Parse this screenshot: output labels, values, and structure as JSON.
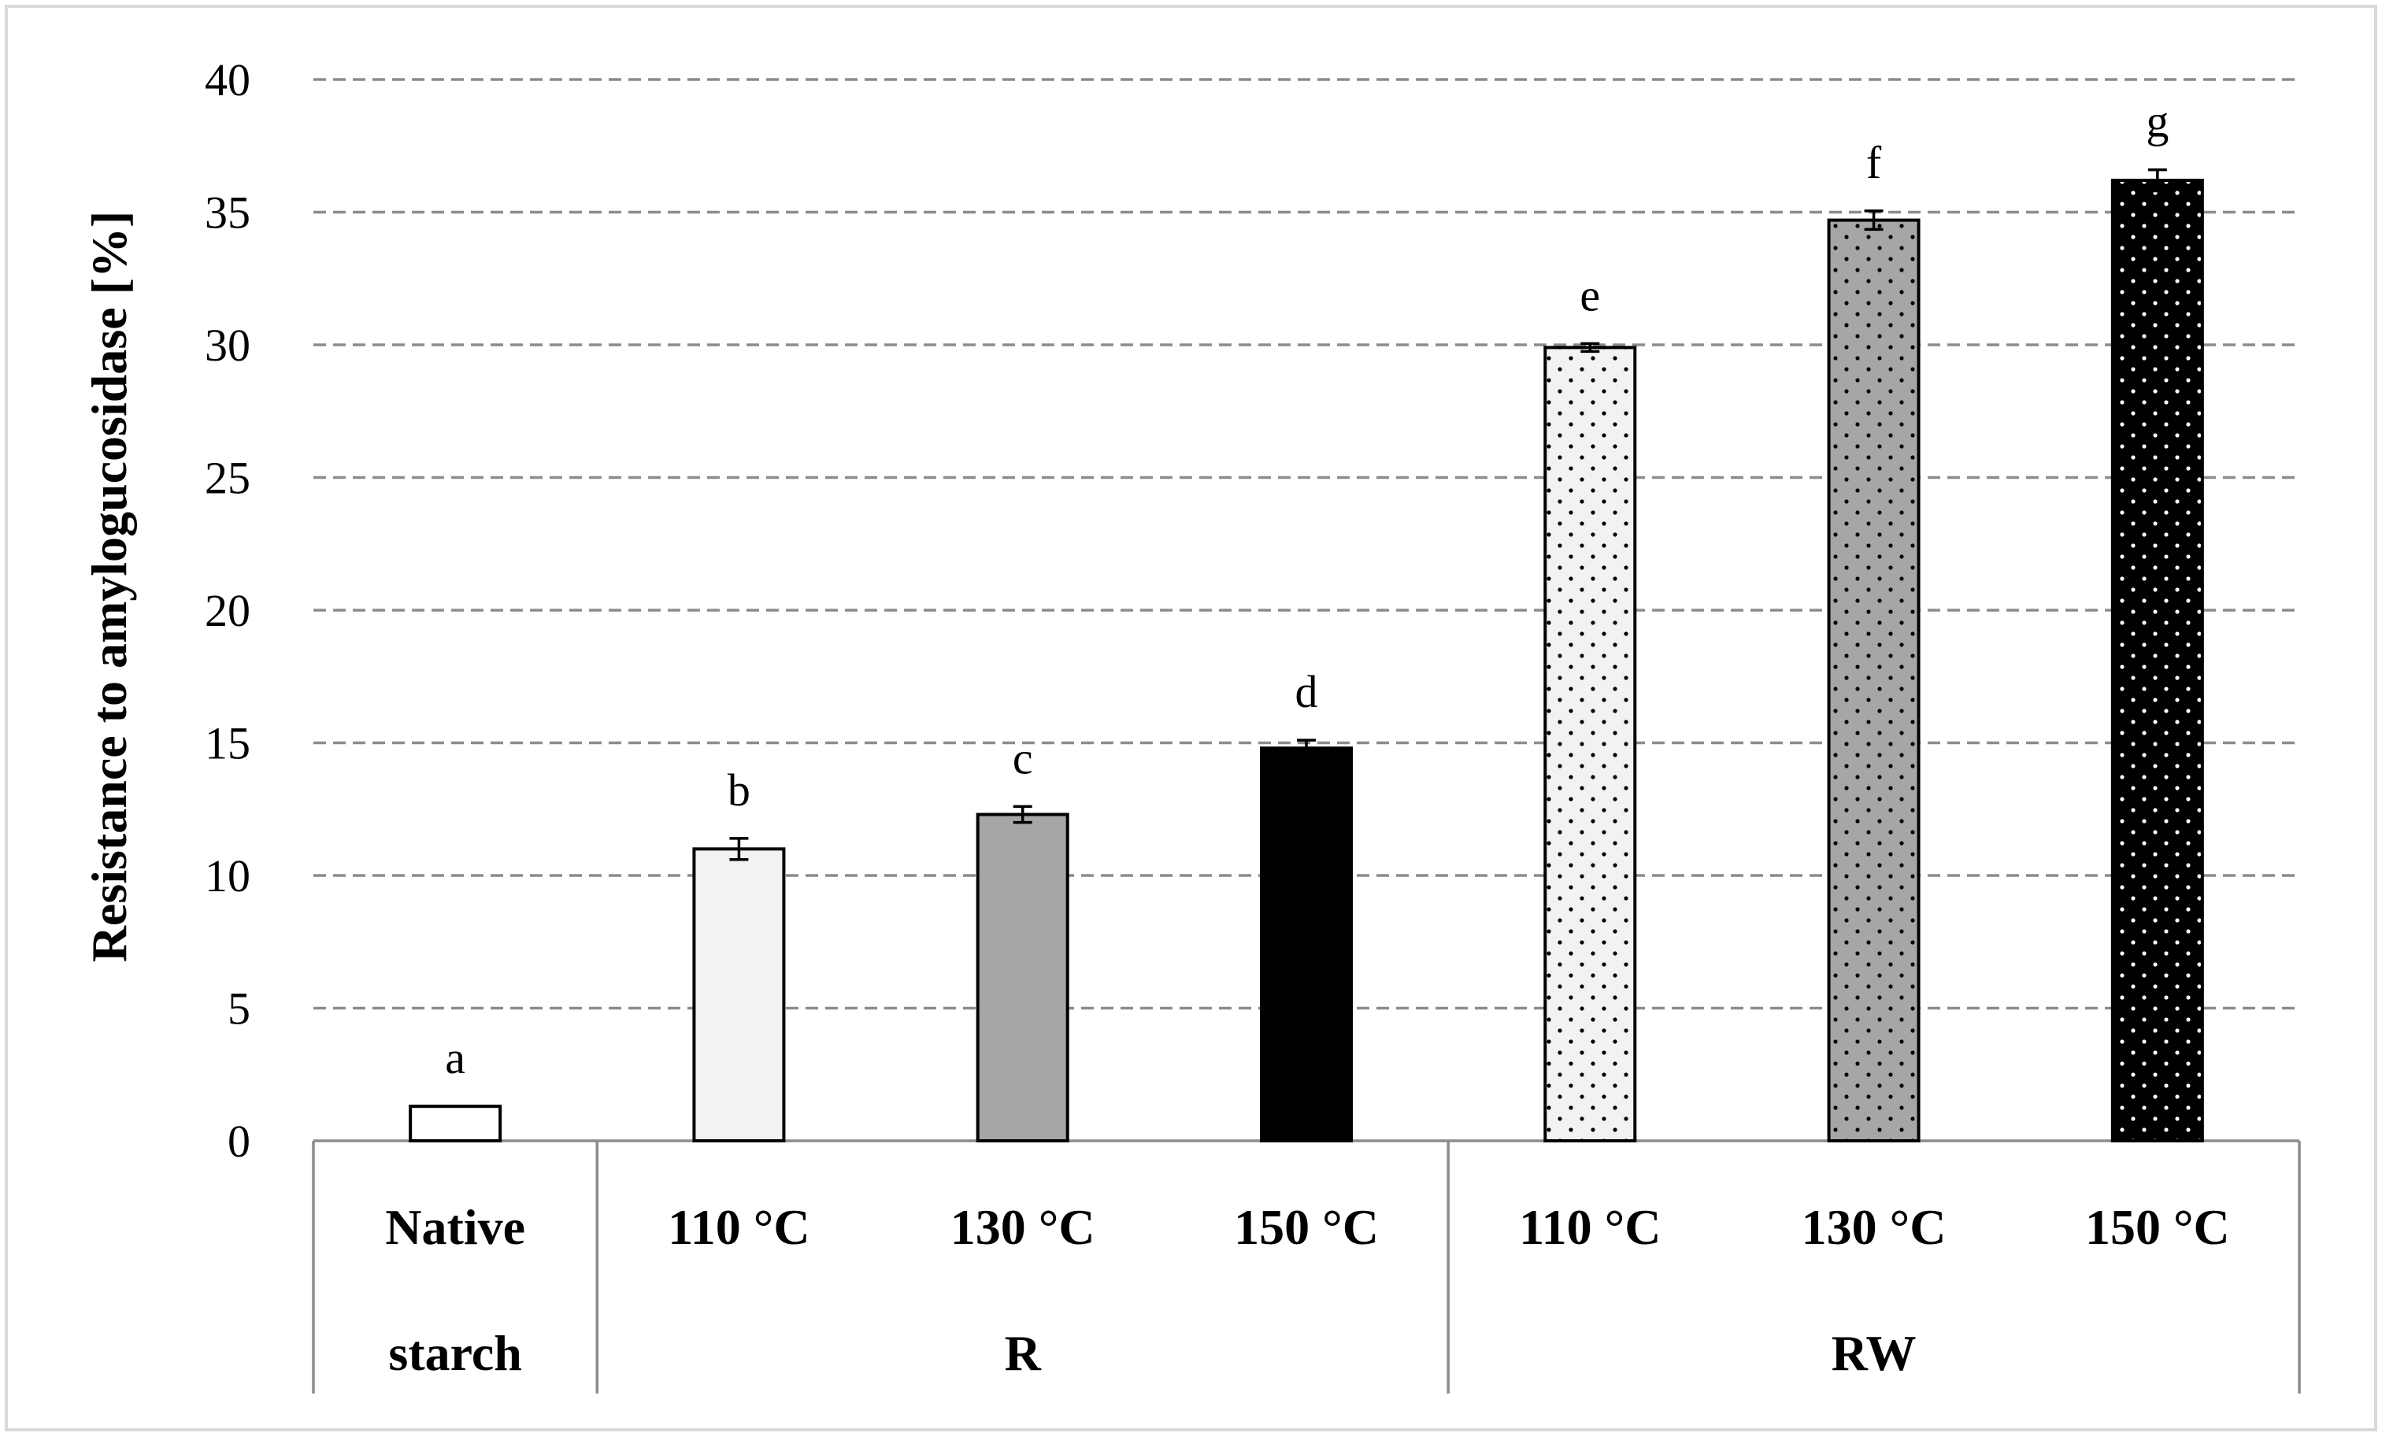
{
  "chart_data": {
    "type": "bar",
    "title": "",
    "xlabel": "",
    "ylabel": "Resistance to amylogucosidase  [%]",
    "ylim": [
      0,
      40
    ],
    "yticks": [
      0,
      5,
      10,
      15,
      20,
      25,
      30,
      35,
      40
    ],
    "grid": "horizontal dashed",
    "categories": [
      "Native starch",
      "110 °C",
      "130 °C",
      "150 °C",
      "110 °C",
      "130 °C",
      "150 °C"
    ],
    "category_lines": [
      [
        "Native",
        "starch"
      ],
      [
        "110 °C"
      ],
      [
        "130 °C"
      ],
      [
        "150 °C"
      ],
      [
        "110 °C"
      ],
      [
        "130 °C"
      ],
      [
        "150 °C"
      ]
    ],
    "groups": [
      {
        "label": "",
        "span": 1
      },
      {
        "label": "R",
        "span": 3
      },
      {
        "label": "RW",
        "span": 3
      }
    ],
    "values": [
      1.3,
      11.0,
      12.3,
      14.8,
      29.9,
      34.7,
      36.2
    ],
    "errors": [
      0.0,
      0.4,
      0.3,
      0.3,
      0.15,
      0.35,
      0.4
    ],
    "significance": [
      "a",
      "b",
      "c",
      "d",
      "e",
      "f",
      "g"
    ],
    "bar_styles": [
      {
        "fill": "#ffffff",
        "dots": false
      },
      {
        "fill": "#f2f2f2",
        "dots": false
      },
      {
        "fill": "#a6a6a6",
        "dots": false
      },
      {
        "fill": "#000000",
        "dots": false
      },
      {
        "fill": "#f2f2f2",
        "dots": true,
        "dot_color": "#000000"
      },
      {
        "fill": "#a6a6a6",
        "dots": true,
        "dot_color": "#000000"
      },
      {
        "fill": "#000000",
        "dots": true,
        "dot_color": "#ffffff"
      }
    ]
  }
}
